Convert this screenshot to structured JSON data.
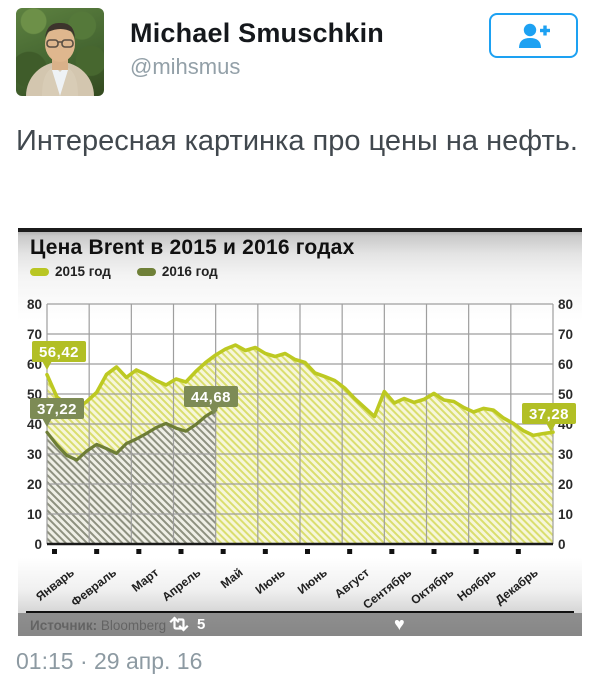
{
  "header": {
    "name": "Michael Smuschkin",
    "handle": "@mihsmus",
    "follow_icon": "person-add-icon",
    "accent_color": "#1da1f2"
  },
  "tweet": {
    "text": "Интересная картинка про цены на нефть."
  },
  "media_overlay": {
    "retweet_icon": "retweet-icon",
    "retweet_count": "5",
    "like_icon": "heart-icon"
  },
  "footer": {
    "timestamp": "01:15 · 29 апр. 16"
  },
  "chart_data": {
    "type": "area",
    "title": "Цена Brent в 2015 и 2016 годах",
    "ylabel": "",
    "xlabel": "",
    "ylim": [
      0,
      80
    ],
    "y_ticks": [
      0,
      10,
      20,
      30,
      40,
      50,
      60,
      70,
      80
    ],
    "grid": true,
    "legend_position": "top-left",
    "x_labels": [
      "Январь",
      "Февраль",
      "Март",
      "Апрель",
      "Май",
      "Июнь",
      "Июнь",
      "Август",
      "Сентябрь",
      "Октябрь",
      "Ноябрь",
      "Декабрь"
    ],
    "legend": [
      {
        "label": "2015 год",
        "color": "#b9c623"
      },
      {
        "label": "2016 год",
        "color": "#6f8038"
      }
    ],
    "source_label": "Источник:",
    "source_value": "Bloomberg",
    "series": [
      {
        "name": "2015 год",
        "line_color": "#bdc922",
        "label_bg": "#b2bf25",
        "hatch_stripe": "#dade6e",
        "hatch_bg": "#f6f6da",
        "month_start": 0,
        "month_end": 12,
        "first_label": "56,42",
        "last_label": "37,28",
        "values": [
          56.42,
          49.0,
          46.5,
          45.0,
          47.5,
          50.5,
          56.5,
          59.0,
          55.5,
          58.0,
          56.5,
          54.5,
          53.0,
          55.0,
          54.0,
          57.5,
          60.5,
          63.0,
          65.0,
          66.3,
          64.5,
          65.5,
          63.5,
          62.5,
          63.5,
          61.5,
          60.5,
          57.0,
          55.8,
          54.5,
          52.0,
          48.5,
          45.5,
          42.5,
          50.8,
          47.0,
          48.5,
          47.2,
          48.2,
          50.2,
          48.0,
          47.5,
          45.5,
          44.0,
          45.2,
          44.6,
          42.0,
          40.2,
          37.8,
          36.2,
          36.8,
          37.28
        ]
      },
      {
        "name": "2016 год",
        "line_color": "#6d7d36",
        "label_bg": "#7d8b55",
        "hatch_stripe": "#8e9180",
        "hatch_bg": "#efefe6",
        "month_start": 0,
        "month_end": 4,
        "first_label": "37,22",
        "last_label": "44,68",
        "values": [
          37.22,
          33.0,
          29.5,
          28.0,
          31.0,
          33.2,
          31.8,
          30.2,
          33.5,
          35.0,
          36.8,
          38.8,
          40.2,
          38.6,
          37.6,
          39.8,
          42.6,
          44.68
        ]
      }
    ]
  }
}
